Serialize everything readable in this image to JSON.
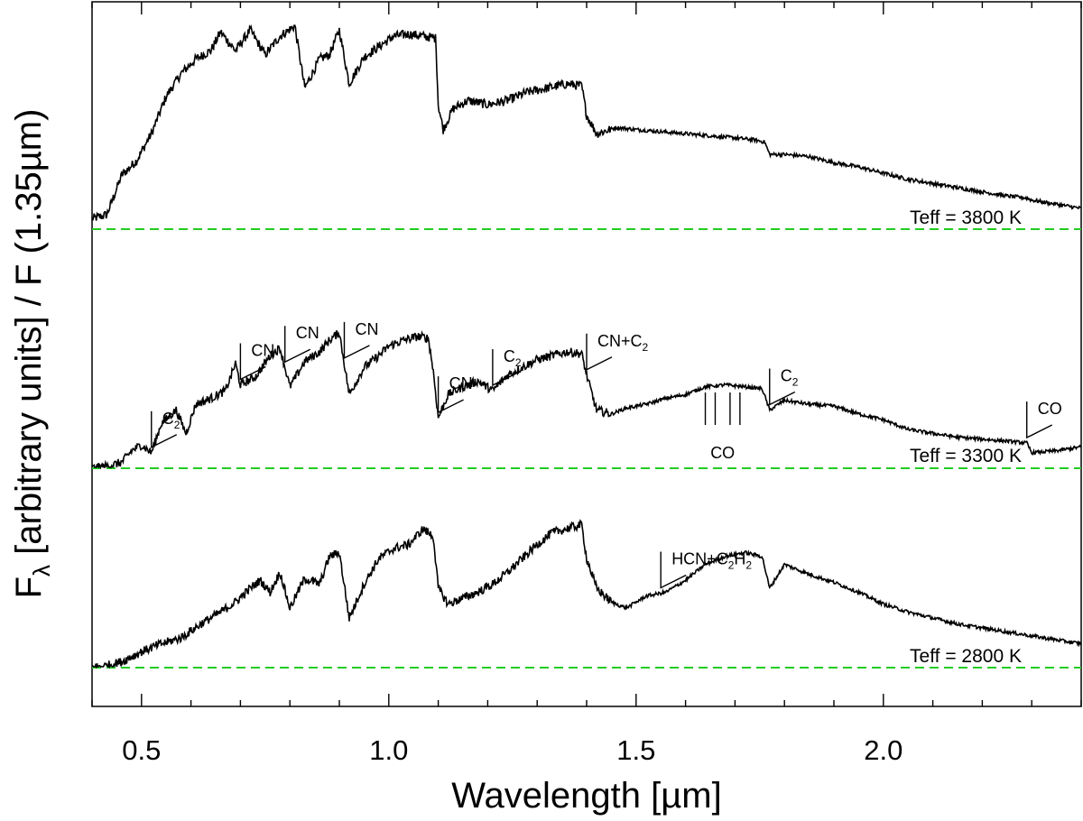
{
  "chart_data": {
    "type": "line",
    "xlabel": "Wavelength [µm]",
    "ylabel": "Fλ [arbitrary units] / F (1.35µm)",
    "ylabel_parts": {
      "main": "F",
      "sub": "λ",
      "rest": " [arbitrary units] / F (1.35µm)"
    },
    "xlim": [
      0.4,
      2.4
    ],
    "x_ticks": [
      0.5,
      1.0,
      1.5,
      2.0
    ],
    "x_tick_labels": [
      "0.5",
      "1.0",
      "1.5",
      "2.0"
    ],
    "y_axis": "arbitrary, offset spectra, no tick labels",
    "baseline_color": "#22cc22",
    "line_color": "#000000",
    "series": [
      {
        "name": "Teff = 3800 K",
        "label": "Teff = 3800 K",
        "offset": 0.0,
        "points": [
          [
            0.4,
            0.05
          ],
          [
            0.43,
            0.07
          ],
          [
            0.46,
            0.26
          ],
          [
            0.49,
            0.33
          ],
          [
            0.52,
            0.46
          ],
          [
            0.55,
            0.64
          ],
          [
            0.58,
            0.75
          ],
          [
            0.61,
            0.82
          ],
          [
            0.64,
            0.86
          ],
          [
            0.66,
            0.95
          ],
          [
            0.69,
            0.86
          ],
          [
            0.72,
            0.96
          ],
          [
            0.75,
            0.84
          ],
          [
            0.78,
            0.93
          ],
          [
            0.81,
            0.98
          ],
          [
            0.83,
            0.68
          ],
          [
            0.86,
            0.82
          ],
          [
            0.88,
            0.84
          ],
          [
            0.9,
            0.96
          ],
          [
            0.92,
            0.7
          ],
          [
            0.95,
            0.83
          ],
          [
            0.98,
            0.88
          ],
          [
            1.01,
            0.93
          ],
          [
            1.04,
            0.94
          ],
          [
            1.07,
            0.93
          ],
          [
            1.095,
            0.92
          ],
          [
            1.1,
            0.6
          ],
          [
            1.11,
            0.48
          ],
          [
            1.13,
            0.58
          ],
          [
            1.16,
            0.62
          ],
          [
            1.2,
            0.6
          ],
          [
            1.24,
            0.62
          ],
          [
            1.28,
            0.66
          ],
          [
            1.32,
            0.68
          ],
          [
            1.36,
            0.7
          ],
          [
            1.39,
            0.69
          ],
          [
            1.4,
            0.55
          ],
          [
            1.42,
            0.46
          ],
          [
            1.46,
            0.49
          ],
          [
            1.5,
            0.48
          ],
          [
            1.55,
            0.47
          ],
          [
            1.6,
            0.46
          ],
          [
            1.65,
            0.45
          ],
          [
            1.7,
            0.44
          ],
          [
            1.74,
            0.43
          ],
          [
            1.76,
            0.42
          ],
          [
            1.77,
            0.36
          ],
          [
            1.8,
            0.36
          ],
          [
            1.85,
            0.35
          ],
          [
            1.9,
            0.32
          ],
          [
            1.95,
            0.3
          ],
          [
            2.0,
            0.27
          ],
          [
            2.05,
            0.24
          ],
          [
            2.1,
            0.22
          ],
          [
            2.15,
            0.2
          ],
          [
            2.2,
            0.18
          ],
          [
            2.25,
            0.16
          ],
          [
            2.29,
            0.15
          ],
          [
            2.3,
            0.14
          ],
          [
            2.35,
            0.12
          ],
          [
            2.4,
            0.1
          ]
        ]
      },
      {
        "name": "Teff = 3300 K",
        "label": "Teff = 3300 K",
        "offset": 0.0,
        "points": [
          [
            0.4,
            0.0
          ],
          [
            0.43,
            0.01
          ],
          [
            0.46,
            0.03
          ],
          [
            0.48,
            0.09
          ],
          [
            0.5,
            0.12
          ],
          [
            0.52,
            0.08
          ],
          [
            0.54,
            0.23
          ],
          [
            0.57,
            0.3
          ],
          [
            0.59,
            0.18
          ],
          [
            0.61,
            0.33
          ],
          [
            0.64,
            0.36
          ],
          [
            0.67,
            0.4
          ],
          [
            0.69,
            0.54
          ],
          [
            0.7,
            0.43
          ],
          [
            0.73,
            0.47
          ],
          [
            0.76,
            0.58
          ],
          [
            0.78,
            0.62
          ],
          [
            0.8,
            0.42
          ],
          [
            0.83,
            0.55
          ],
          [
            0.86,
            0.6
          ],
          [
            0.88,
            0.66
          ],
          [
            0.9,
            0.7
          ],
          [
            0.92,
            0.38
          ],
          [
            0.95,
            0.52
          ],
          [
            0.98,
            0.58
          ],
          [
            1.0,
            0.63
          ],
          [
            1.03,
            0.66
          ],
          [
            1.06,
            0.68
          ],
          [
            1.08,
            0.67
          ],
          [
            1.09,
            0.5
          ],
          [
            1.1,
            0.26
          ],
          [
            1.12,
            0.38
          ],
          [
            1.15,
            0.42
          ],
          [
            1.18,
            0.45
          ],
          [
            1.21,
            0.4
          ],
          [
            1.24,
            0.48
          ],
          [
            1.27,
            0.52
          ],
          [
            1.3,
            0.56
          ],
          [
            1.33,
            0.58
          ],
          [
            1.36,
            0.6
          ],
          [
            1.39,
            0.59
          ],
          [
            1.4,
            0.48
          ],
          [
            1.42,
            0.3
          ],
          [
            1.45,
            0.28
          ],
          [
            1.48,
            0.31
          ],
          [
            1.52,
            0.33
          ],
          [
            1.56,
            0.36
          ],
          [
            1.6,
            0.38
          ],
          [
            1.64,
            0.42
          ],
          [
            1.68,
            0.43
          ],
          [
            1.72,
            0.42
          ],
          [
            1.755,
            0.41
          ],
          [
            1.77,
            0.3
          ],
          [
            1.8,
            0.35
          ],
          [
            1.85,
            0.33
          ],
          [
            1.9,
            0.32
          ],
          [
            1.95,
            0.28
          ],
          [
            2.0,
            0.25
          ],
          [
            2.05,
            0.2
          ],
          [
            2.1,
            0.18
          ],
          [
            2.15,
            0.16
          ],
          [
            2.2,
            0.15
          ],
          [
            2.25,
            0.14
          ],
          [
            2.29,
            0.13
          ],
          [
            2.3,
            0.08
          ],
          [
            2.35,
            0.09
          ],
          [
            2.4,
            0.11
          ]
        ]
      },
      {
        "name": "Teff = 2800 K",
        "label": "Teff = 2800 K",
        "offset": 0.0,
        "points": [
          [
            0.4,
            0.0
          ],
          [
            0.43,
            0.01
          ],
          [
            0.46,
            0.03
          ],
          [
            0.5,
            0.08
          ],
          [
            0.54,
            0.12
          ],
          [
            0.58,
            0.15
          ],
          [
            0.62,
            0.22
          ],
          [
            0.66,
            0.28
          ],
          [
            0.69,
            0.33
          ],
          [
            0.72,
            0.4
          ],
          [
            0.74,
            0.44
          ],
          [
            0.76,
            0.38
          ],
          [
            0.78,
            0.48
          ],
          [
            0.8,
            0.3
          ],
          [
            0.83,
            0.45
          ],
          [
            0.86,
            0.42
          ],
          [
            0.88,
            0.56
          ],
          [
            0.9,
            0.58
          ],
          [
            0.92,
            0.25
          ],
          [
            0.95,
            0.42
          ],
          [
            0.98,
            0.55
          ],
          [
            1.01,
            0.6
          ],
          [
            1.04,
            0.62
          ],
          [
            1.07,
            0.7
          ],
          [
            1.09,
            0.66
          ],
          [
            1.1,
            0.4
          ],
          [
            1.12,
            0.32
          ],
          [
            1.15,
            0.35
          ],
          [
            1.18,
            0.38
          ],
          [
            1.21,
            0.42
          ],
          [
            1.24,
            0.48
          ],
          [
            1.27,
            0.55
          ],
          [
            1.3,
            0.62
          ],
          [
            1.33,
            0.68
          ],
          [
            1.36,
            0.7
          ],
          [
            1.39,
            0.72
          ],
          [
            1.4,
            0.55
          ],
          [
            1.42,
            0.4
          ],
          [
            1.45,
            0.33
          ],
          [
            1.48,
            0.3
          ],
          [
            1.52,
            0.36
          ],
          [
            1.56,
            0.38
          ],
          [
            1.6,
            0.44
          ],
          [
            1.64,
            0.52
          ],
          [
            1.68,
            0.56
          ],
          [
            1.72,
            0.58
          ],
          [
            1.755,
            0.56
          ],
          [
            1.77,
            0.4
          ],
          [
            1.8,
            0.52
          ],
          [
            1.85,
            0.47
          ],
          [
            1.9,
            0.43
          ],
          [
            1.95,
            0.38
          ],
          [
            2.0,
            0.32
          ],
          [
            2.05,
            0.28
          ],
          [
            2.1,
            0.25
          ],
          [
            2.15,
            0.22
          ],
          [
            2.2,
            0.2
          ],
          [
            2.25,
            0.18
          ],
          [
            2.3,
            0.16
          ],
          [
            2.35,
            0.14
          ],
          [
            2.4,
            0.12
          ]
        ]
      }
    ],
    "annotations": [
      {
        "series": 1,
        "x": 0.52,
        "main": "C",
        "sub": "2",
        "tail": ""
      },
      {
        "series": 1,
        "x": 0.7,
        "main": "CN",
        "sub": "",
        "tail": ""
      },
      {
        "series": 1,
        "x": 0.79,
        "main": "CN",
        "sub": "",
        "tail": ""
      },
      {
        "series": 1,
        "x": 0.91,
        "main": "CN",
        "sub": "",
        "tail": ""
      },
      {
        "series": 1,
        "x": 1.1,
        "main": "CN",
        "sub": "",
        "tail": ""
      },
      {
        "series": 1,
        "x": 1.21,
        "main": "C",
        "sub": "2",
        "tail": ""
      },
      {
        "series": 1,
        "x": 1.4,
        "main": "CN+C",
        "sub": "2",
        "tail": ""
      },
      {
        "series": 1,
        "x": 1.77,
        "main": "C",
        "sub": "2",
        "tail": ""
      },
      {
        "series": 1,
        "x": 2.29,
        "main": "CO",
        "sub": "",
        "tail": ""
      },
      {
        "series": 2,
        "x": 1.55,
        "main": "HCN+C",
        "sub": "2",
        "tail": "H",
        "sub2": "2"
      }
    ],
    "co_band": {
      "series": 1,
      "label": "CO",
      "x": [
        1.64,
        1.66,
        1.69,
        1.71
      ]
    }
  }
}
